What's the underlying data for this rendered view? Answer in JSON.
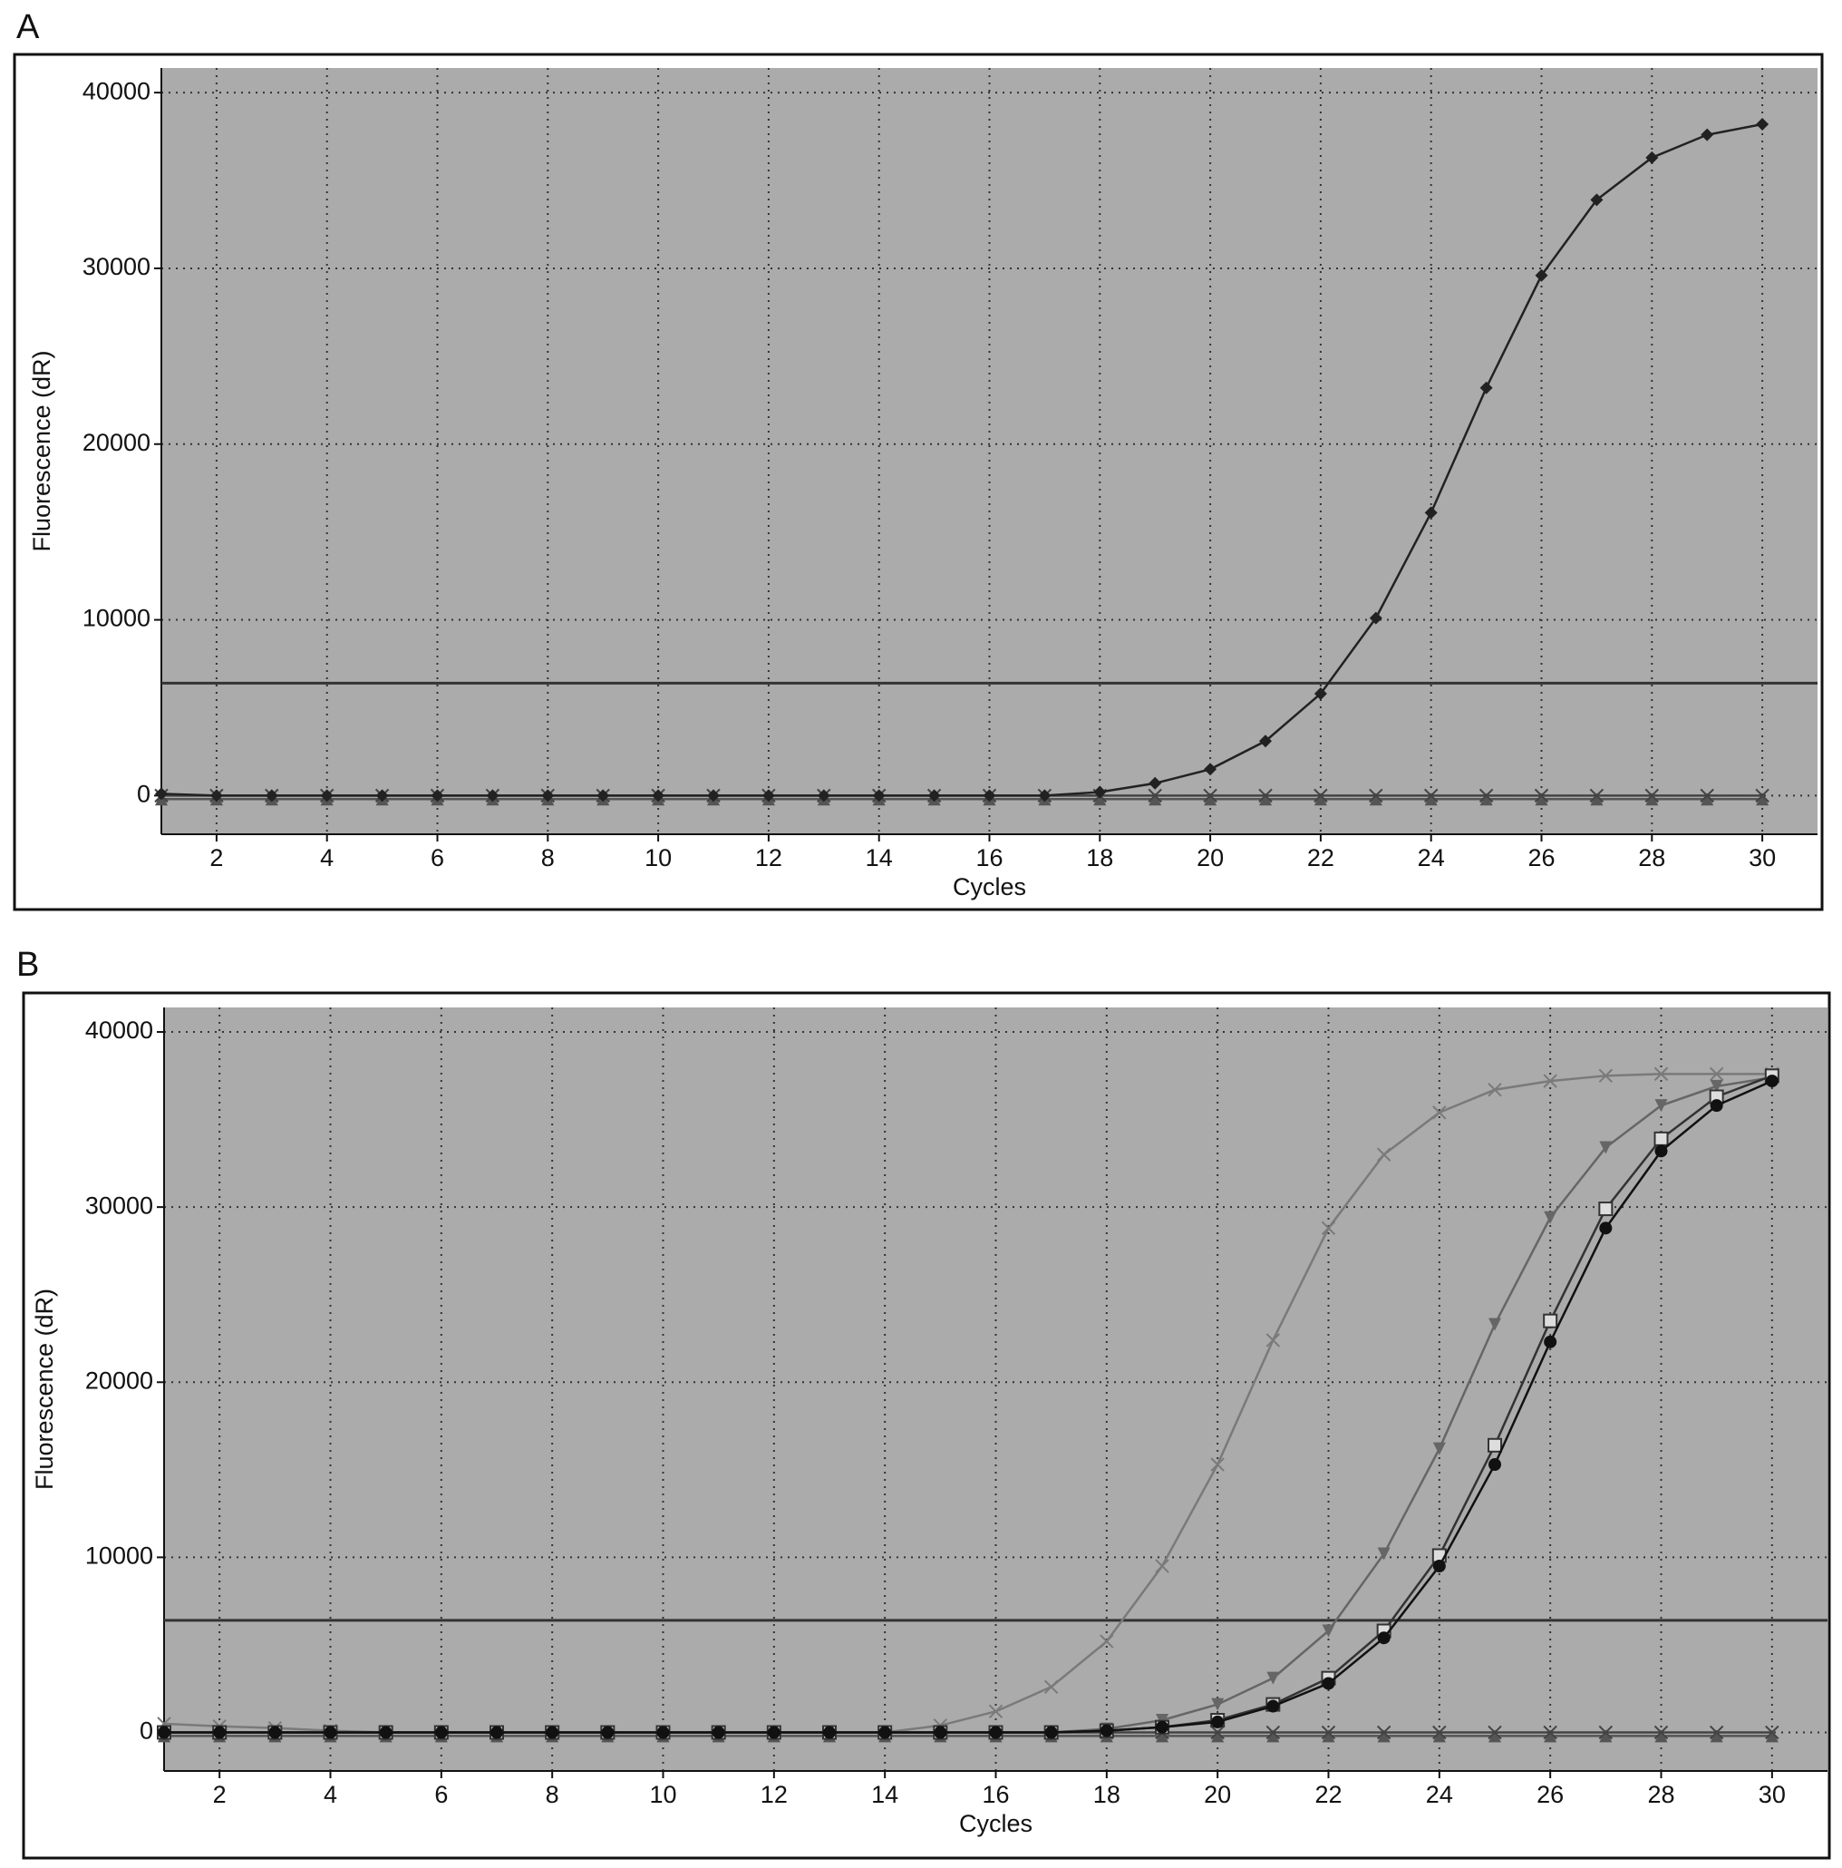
{
  "chart_data": [
    {
      "type": "line",
      "title": "A",
      "x_label": "Cycles",
      "y_label": "Fluorescence (dR)",
      "x": [
        1,
        2,
        3,
        4,
        5,
        6,
        7,
        8,
        9,
        10,
        11,
        12,
        13,
        14,
        15,
        16,
        17,
        18,
        19,
        20,
        21,
        22,
        23,
        24,
        25,
        26,
        27,
        28,
        29,
        30
      ],
      "xlim": [
        1,
        31
      ],
      "ylim": [
        -2200,
        41400
      ],
      "xticks": [
        2,
        4,
        6,
        8,
        10,
        12,
        14,
        16,
        18,
        20,
        22,
        24,
        26,
        28,
        30
      ],
      "yticks": [
        0,
        10000,
        20000,
        30000,
        40000
      ],
      "grid": true,
      "threshold": 6400,
      "series": [
        {
          "color": "#555555",
          "marker": "triangle",
          "values": [
            -200,
            -200,
            -200,
            -200,
            -200,
            -200,
            -200,
            -200,
            -200,
            -200,
            -200,
            -200,
            -200,
            -200,
            -200,
            -200,
            -200,
            -200,
            -200,
            -200,
            -200,
            -200,
            -200,
            -200,
            -200,
            -200,
            -200,
            -200,
            -200,
            -200
          ]
        },
        {
          "color": "#444444",
          "marker": "x",
          "values": [
            0,
            0,
            0,
            0,
            0,
            0,
            0,
            0,
            0,
            0,
            0,
            0,
            0,
            0,
            0,
            0,
            0,
            0,
            0,
            0,
            0,
            0,
            0,
            0,
            0,
            0,
            0,
            0,
            0,
            0
          ]
        },
        {
          "color": "#222222",
          "marker": "diamond",
          "values": [
            100,
            0,
            0,
            0,
            0,
            0,
            0,
            0,
            0,
            0,
            0,
            0,
            0,
            0,
            0,
            0,
            0,
            200,
            700,
            1500,
            3100,
            5800,
            10100,
            16100,
            23200,
            29600,
            33900,
            36300,
            37600,
            38200
          ]
        }
      ]
    },
    {
      "type": "line",
      "title": "B",
      "x_label": "Cycles",
      "y_label": "Fluorescence (dR)",
      "x": [
        1,
        2,
        3,
        4,
        5,
        6,
        7,
        8,
        9,
        10,
        11,
        12,
        13,
        14,
        15,
        16,
        17,
        18,
        19,
        20,
        21,
        22,
        23,
        24,
        25,
        26,
        27,
        28,
        29,
        30
      ],
      "xlim": [
        1,
        31
      ],
      "ylim": [
        -2200,
        41400
      ],
      "xticks": [
        2,
        4,
        6,
        8,
        10,
        12,
        14,
        16,
        18,
        20,
        22,
        24,
        26,
        28,
        30
      ],
      "yticks": [
        0,
        10000,
        20000,
        30000,
        40000
      ],
      "grid": true,
      "threshold": 6400,
      "series": [
        {
          "color": "#555555",
          "marker": "triangle",
          "values": [
            -200,
            -200,
            -200,
            -200,
            -200,
            -200,
            -200,
            -200,
            -200,
            -200,
            -200,
            -200,
            -200,
            -200,
            -200,
            -200,
            -200,
            -200,
            -200,
            -200,
            -200,
            -200,
            -200,
            -200,
            -200,
            -200,
            -200,
            -200,
            -200,
            -200
          ]
        },
        {
          "color": "#444444",
          "marker": "x",
          "values": [
            0,
            0,
            0,
            0,
            0,
            0,
            0,
            0,
            0,
            0,
            0,
            0,
            0,
            0,
            0,
            0,
            0,
            0,
            0,
            0,
            0,
            0,
            0,
            0,
            0,
            0,
            0,
            0,
            0,
            0
          ]
        },
        {
          "color": "#7a7a7a",
          "marker": "x",
          "values": [
            500,
            350,
            250,
            100,
            0,
            0,
            0,
            0,
            0,
            0,
            0,
            0,
            0,
            0,
            400,
            1200,
            2600,
            5200,
            9500,
            15300,
            22400,
            28800,
            33000,
            35400,
            36700,
            37200,
            37500,
            37600,
            37600,
            37600
          ]
        },
        {
          "color": "#666666",
          "marker": "triangle-down",
          "values": [
            0,
            0,
            0,
            0,
            0,
            0,
            0,
            0,
            0,
            0,
            0,
            0,
            0,
            0,
            0,
            0,
            0,
            200,
            700,
            1600,
            3100,
            5800,
            10200,
            16200,
            23300,
            29400,
            33400,
            35800,
            36900,
            37400
          ]
        },
        {
          "color": "#333333",
          "marker": "square-open",
          "values": [
            0,
            0,
            0,
            0,
            0,
            0,
            0,
            0,
            0,
            0,
            0,
            0,
            0,
            0,
            0,
            0,
            0,
            100,
            300,
            700,
            1600,
            3100,
            5800,
            10100,
            16400,
            23500,
            29900,
            33900,
            36300,
            37500
          ]
        },
        {
          "color": "#111111",
          "marker": "circle",
          "values": [
            0,
            0,
            0,
            0,
            0,
            0,
            0,
            0,
            0,
            0,
            0,
            0,
            0,
            0,
            0,
            0,
            0,
            100,
            300,
            600,
            1500,
            2800,
            5400,
            9500,
            15300,
            22300,
            28800,
            33200,
            35800,
            37200
          ]
        }
      ]
    }
  ]
}
